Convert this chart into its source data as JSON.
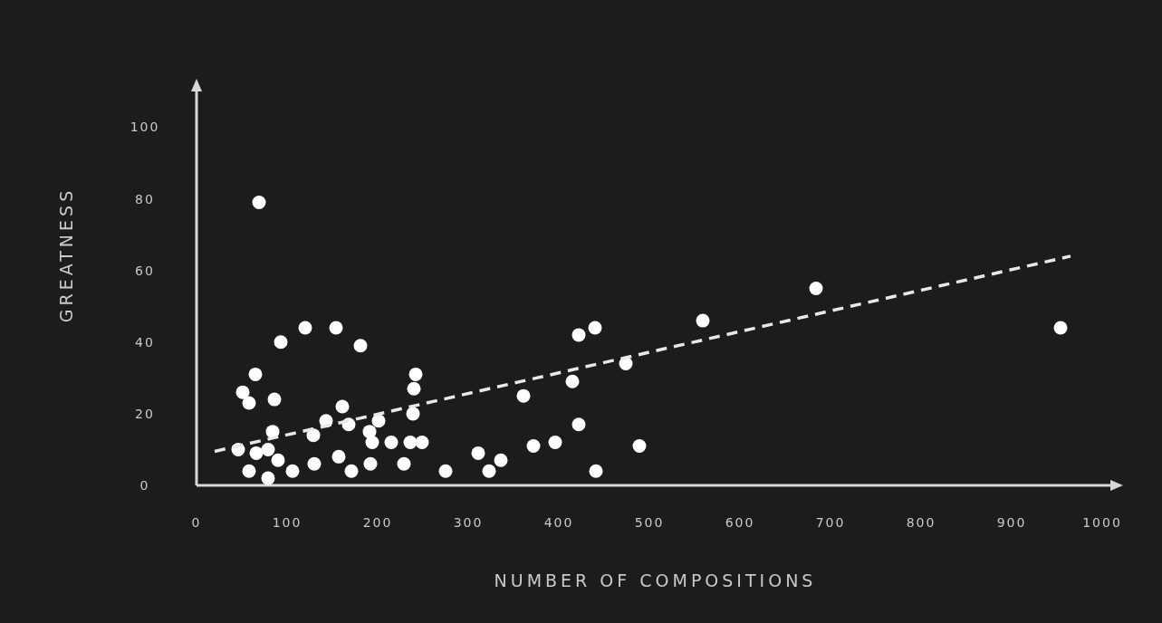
{
  "chart_data": {
    "type": "scatter",
    "xlabel": "NUMBER OF COMPOSITIONS",
    "ylabel": "GREATNESS",
    "xlim": [
      0,
      1013
    ],
    "ylim": [
      0,
      111
    ],
    "xticks": [
      0,
      100,
      200,
      300,
      400,
      500,
      600,
      700,
      800,
      900,
      1000
    ],
    "yticks": [
      0,
      20,
      40,
      60,
      80,
      100
    ],
    "marker": "circle",
    "series": [
      {
        "color": "#ffffff",
        "x": [
          46,
          51,
          58,
          58,
          65,
          66,
          69,
          79,
          79,
          84,
          86,
          90,
          93,
          106,
          120,
          129,
          130,
          143,
          154,
          157,
          161,
          168,
          171,
          181,
          191,
          192,
          194,
          201,
          215,
          229,
          236,
          239,
          240,
          242,
          249,
          275,
          311,
          323,
          336,
          361,
          372,
          396,
          415,
          422,
          422,
          440,
          441,
          474,
          489,
          559,
          684,
          954
        ],
        "values": [
          10,
          26,
          23,
          4,
          31,
          9,
          79,
          10,
          2,
          15,
          24,
          7,
          40,
          4,
          44,
          14,
          6,
          18,
          44,
          8,
          22,
          17,
          4,
          39,
          15,
          6,
          12,
          18,
          12,
          6,
          12,
          20,
          27,
          31,
          12,
          4,
          9,
          4,
          7,
          25,
          11,
          12,
          29,
          42,
          17,
          44,
          4,
          34,
          11,
          46,
          55,
          44
        ]
      },
      {
        "type": "line",
        "color": "#e8e8e8",
        "line_style": "dashed",
        "marker": "none",
        "x": [
          20,
          965
        ],
        "values": [
          9.5,
          64
        ]
      }
    ]
  }
}
